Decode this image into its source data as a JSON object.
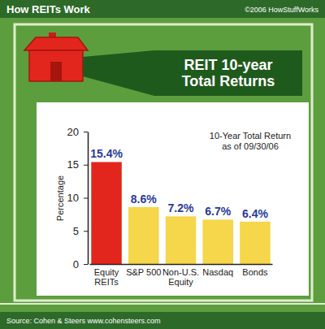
{
  "header": {
    "title": "How REITs Work",
    "credit": "©2006 HowStuffWorks"
  },
  "chart_data": {
    "type": "bar",
    "title": "REIT 10-year Total Returns",
    "subtitle": "10-Year Total Return as of 09/30/06",
    "y_label": "Percentage",
    "categories": [
      "Equity REITs",
      "S&P 500",
      "Non-U.S. Equity",
      "Nasdaq",
      "Bonds"
    ],
    "values": [
      15.4,
      8.6,
      7.2,
      6.7,
      6.4
    ],
    "value_labels": [
      "15.4%",
      "8.6%",
      "7.2%",
      "6.7%",
      "6.4%"
    ],
    "colors": [
      "#e2261d",
      "#f6d64a",
      "#f6d64a",
      "#f6d64a",
      "#f6d64a"
    ],
    "ylim": [
      0,
      20
    ],
    "yticks": [
      0,
      5,
      10,
      15,
      20
    ],
    "grid": false,
    "data_labels": true
  },
  "footer": {
    "source": "Source: Cohen & Steers www.cohensteers.com"
  }
}
